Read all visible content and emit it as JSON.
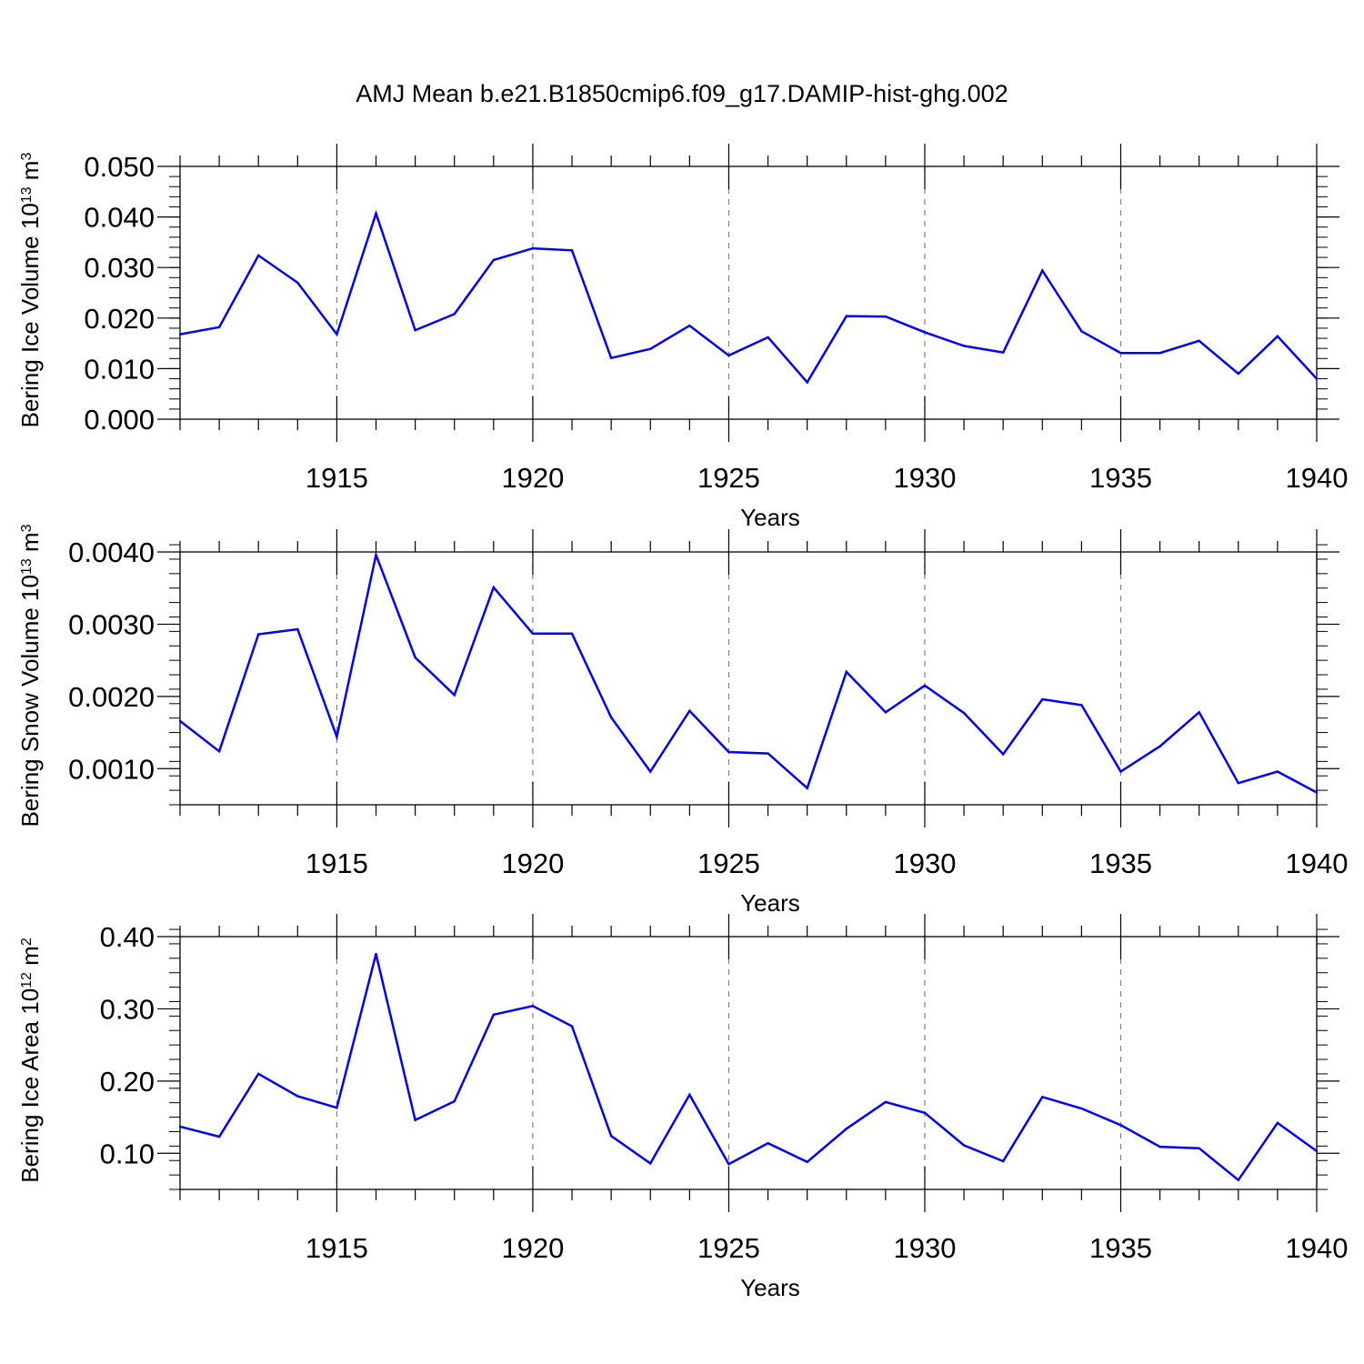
{
  "title": "AMJ Mean b.e21.B1850cmip6.f09_g17.DAMIP-hist-ghg.002",
  "colors": {
    "line": "#0000ff",
    "axis": "#000000",
    "grid": "#808080"
  },
  "chart_data": [
    {
      "type": "line",
      "xlabel": "Years",
      "ylabel": {
        "text": "Bering Ice Volume 10",
        "sup": "13",
        "unit": " m",
        "unit_sup": "3"
      },
      "xlim": [
        1911,
        1940
      ],
      "ylim": [
        0.0,
        0.05
      ],
      "x_ticks": [
        "1915",
        "1920",
        "1925",
        "1930",
        "1935",
        "1940"
      ],
      "y_ticks": [
        "0.000",
        "0.010",
        "0.020",
        "0.030",
        "0.040",
        "0.050"
      ],
      "grid": "vertical dashed at major x ticks",
      "x": [
        1911,
        1912,
        1913,
        1914,
        1915,
        1916,
        1917,
        1918,
        1919,
        1920,
        1921,
        1922,
        1923,
        1924,
        1925,
        1926,
        1927,
        1928,
        1929,
        1930,
        1931,
        1932,
        1933,
        1934,
        1935,
        1936,
        1937,
        1938,
        1939,
        1940
      ],
      "values": [
        0.0168,
        0.0182,
        0.0324,
        0.027,
        0.0168,
        0.0407,
        0.0176,
        0.0208,
        0.0315,
        0.0338,
        0.0334,
        0.0121,
        0.0139,
        0.0185,
        0.0126,
        0.0162,
        0.0073,
        0.0204,
        0.0203,
        0.0172,
        0.0145,
        0.0132,
        0.0294,
        0.0174,
        0.0131,
        0.0131,
        0.0155,
        0.009,
        0.0164,
        0.008
      ]
    },
    {
      "type": "line",
      "xlabel": "Years",
      "ylabel": {
        "text": "Bering Snow Volume 10",
        "sup": "13",
        "unit": " m",
        "unit_sup": "3"
      },
      "xlim": [
        1911,
        1940
      ],
      "ylim": [
        0.0005,
        0.004
      ],
      "x_ticks": [
        "1915",
        "1920",
        "1925",
        "1930",
        "1935",
        "1940"
      ],
      "y_ticks": [
        "0.0010",
        "0.0020",
        "0.0030",
        "0.0040"
      ],
      "grid": "vertical dashed at major x ticks",
      "x": [
        1911,
        1912,
        1913,
        1914,
        1915,
        1916,
        1917,
        1918,
        1919,
        1920,
        1921,
        1922,
        1923,
        1924,
        1925,
        1926,
        1927,
        1928,
        1929,
        1930,
        1931,
        1932,
        1933,
        1934,
        1935,
        1936,
        1937,
        1938,
        1939,
        1940
      ],
      "values": [
        0.00166,
        0.00124,
        0.00286,
        0.00293,
        0.00144,
        0.00396,
        0.00254,
        0.00202,
        0.00351,
        0.00287,
        0.00287,
        0.00171,
        0.00096,
        0.0018,
        0.00123,
        0.00121,
        0.00073,
        0.00234,
        0.00178,
        0.00215,
        0.00177,
        0.0012,
        0.00196,
        0.00188,
        0.00096,
        0.00131,
        0.00178,
        0.0008,
        0.00096,
        0.00067
      ]
    },
    {
      "type": "line",
      "xlabel": "Years",
      "ylabel": {
        "text": "Bering Ice Area 10",
        "sup": "12",
        "unit": " m",
        "unit_sup": "2"
      },
      "xlim": [
        1911,
        1940
      ],
      "ylim": [
        0.05,
        0.4
      ],
      "x_ticks": [
        "1915",
        "1920",
        "1925",
        "1930",
        "1935",
        "1940"
      ],
      "y_ticks": [
        "0.10",
        "0.20",
        "0.30",
        "0.40"
      ],
      "grid": "vertical dashed at major x ticks",
      "x": [
        1911,
        1912,
        1913,
        1914,
        1915,
        1916,
        1917,
        1918,
        1919,
        1920,
        1921,
        1922,
        1923,
        1924,
        1925,
        1926,
        1927,
        1928,
        1929,
        1930,
        1931,
        1932,
        1933,
        1934,
        1935,
        1936,
        1937,
        1938,
        1939,
        1940
      ],
      "values": [
        0.137,
        0.123,
        0.21,
        0.179,
        0.163,
        0.376,
        0.146,
        0.172,
        0.292,
        0.304,
        0.276,
        0.124,
        0.086,
        0.181,
        0.085,
        0.114,
        0.088,
        0.134,
        0.171,
        0.156,
        0.111,
        0.089,
        0.178,
        0.162,
        0.139,
        0.109,
        0.107,
        0.063,
        0.142,
        0.103
      ]
    }
  ]
}
